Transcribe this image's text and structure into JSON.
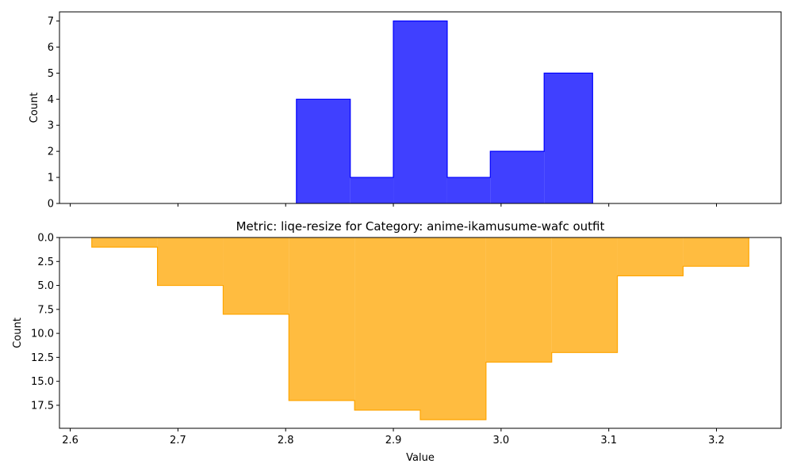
{
  "chart_data": [
    {
      "type": "bar",
      "subtype": "step-filled-histogram",
      "title": "",
      "xlabel": "",
      "ylabel": "Count",
      "xlim": [
        2.59,
        3.26
      ],
      "ylim": [
        0,
        7.35
      ],
      "y_inverted": false,
      "yticks": [
        "0",
        "1",
        "2",
        "3",
        "4",
        "5",
        "6",
        "7"
      ],
      "x_ticks_labeled": false,
      "color": "#0000ff",
      "fill_opacity": 0.75,
      "bins": [
        {
          "x0": 2.81,
          "x1": 2.86,
          "value": 4
        },
        {
          "x0": 2.86,
          "x1": 2.9,
          "value": 1
        },
        {
          "x0": 2.9,
          "x1": 2.95,
          "value": 7
        },
        {
          "x0": 2.95,
          "x1": 2.99,
          "value": 1
        },
        {
          "x0": 2.99,
          "x1": 3.04,
          "value": 2
        },
        {
          "x0": 3.04,
          "x1": 3.085,
          "value": 5
        }
      ]
    },
    {
      "type": "bar",
      "subtype": "step-filled-histogram",
      "title": "Metric: liqe-resize for Category: anime-ikamusume-wafc outfit",
      "xlabel": "Value",
      "ylabel": "Count",
      "xlim": [
        2.59,
        3.26
      ],
      "ylim": [
        0,
        19.9
      ],
      "y_inverted": true,
      "yticks": [
        "0.0",
        "2.5",
        "5.0",
        "7.5",
        "10.0",
        "12.5",
        "15.0",
        "17.5"
      ],
      "xticks": [
        "2.6",
        "2.7",
        "2.8",
        "2.9",
        "3.0",
        "3.1",
        "3.2"
      ],
      "color": "#ffa500",
      "fill_opacity": 0.75,
      "bins": [
        {
          "x0": 2.62,
          "x1": 2.681,
          "value": 1
        },
        {
          "x0": 2.681,
          "x1": 2.742,
          "value": 5
        },
        {
          "x0": 2.742,
          "x1": 2.803,
          "value": 8
        },
        {
          "x0": 2.803,
          "x1": 2.864,
          "value": 17
        },
        {
          "x0": 2.864,
          "x1": 2.925,
          "value": 18
        },
        {
          "x0": 2.925,
          "x1": 2.986,
          "value": 19
        },
        {
          "x0": 2.986,
          "x1": 3.047,
          "value": 13
        },
        {
          "x0": 3.047,
          "x1": 3.108,
          "value": 12
        },
        {
          "x0": 3.108,
          "x1": 3.169,
          "value": 4
        },
        {
          "x0": 3.169,
          "x1": 3.23,
          "value": 3
        }
      ]
    }
  ]
}
